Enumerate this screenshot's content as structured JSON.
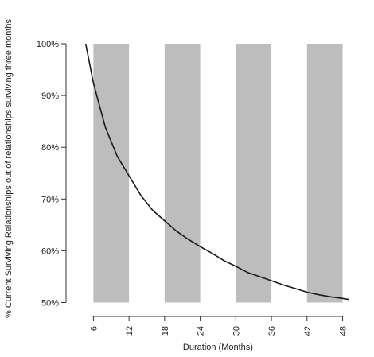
{
  "chart_data": {
    "type": "line",
    "title": "",
    "xlabel": "Duration (Months)",
    "ylabel": "% Current Surviving Relationships out of relationships surviving three months",
    "xlim": [
      3,
      49
    ],
    "ylim": [
      49,
      100
    ],
    "x_ticks": [
      6,
      12,
      18,
      24,
      30,
      36,
      42,
      48
    ],
    "x_tick_labels": [
      "6",
      "12",
      "18",
      "24",
      "30",
      "36",
      "42",
      "48"
    ],
    "y_ticks": [
      50,
      60,
      70,
      80,
      90,
      100
    ],
    "y_tick_labels": [
      "50%",
      "60%",
      "70%",
      "80%",
      "90%",
      "100%"
    ],
    "grid": false,
    "shaded_bands": [
      {
        "x_start": 6,
        "x_end": 12,
        "y_start": 50,
        "y_end": 100
      },
      {
        "x_start": 18,
        "x_end": 24,
        "y_start": 50,
        "y_end": 100
      },
      {
        "x_start": 30,
        "x_end": 36,
        "y_start": 50,
        "y_end": 100
      },
      {
        "x_start": 42,
        "x_end": 48,
        "y_start": 50,
        "y_end": 100
      }
    ],
    "series": [
      {
        "x": [
          4.7,
          6,
          8,
          10,
          12,
          14,
          16,
          18,
          20,
          22,
          24,
          26,
          28,
          30,
          32,
          34,
          36,
          38,
          40,
          42,
          44,
          46,
          48,
          49
        ],
        "values": [
          100,
          92.4,
          83.9,
          78.3,
          74.5,
          70.7,
          67.8,
          65.8,
          63.8,
          62.2,
          60.8,
          59.5,
          58.1,
          57.0,
          55.8,
          55.0,
          54.2,
          53.4,
          52.7,
          52.0,
          51.5,
          51.1,
          50.8,
          50.6
        ]
      }
    ],
    "colors": {
      "band": "#bdbdbd",
      "line": "#1a1a1a",
      "axis": "#333333"
    }
  }
}
